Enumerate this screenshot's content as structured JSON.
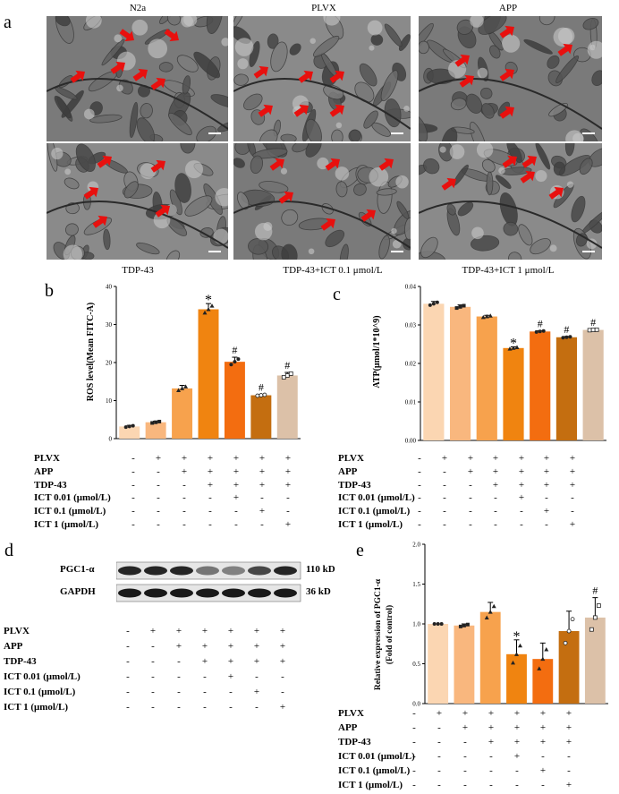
{
  "panel_letters": {
    "a": "a",
    "b": "b",
    "c": "c",
    "d": "d",
    "e": "e"
  },
  "panel_a": {
    "top_labels": [
      "N2a",
      "PLVX",
      "APP"
    ],
    "bottom_labels": [
      "TDP-43",
      "TDP-43+ICT 0.1 μmol/L",
      "TDP-43+ICT 1 μmol/L"
    ]
  },
  "colors": [
    "#fbd6b2",
    "#f9b77e",
    "#f7a24d",
    "#f08410",
    "#f36d10",
    "#c46e10",
    "#dcc1a8"
  ],
  "treatment_rows": [
    {
      "label": "PLVX",
      "signs": [
        "-",
        "+",
        "+",
        "+",
        "+",
        "+",
        "+"
      ]
    },
    {
      "label": "APP",
      "signs": [
        "-",
        "-",
        "+",
        "+",
        "+",
        "+",
        "+"
      ]
    },
    {
      "label": "TDP-43",
      "signs": [
        "-",
        "-",
        "-",
        "+",
        "+",
        "+",
        "+"
      ]
    },
    {
      "label": "ICT 0.01 (μmol/L)",
      "signs": [
        "-",
        "-",
        "-",
        "-",
        "+",
        "-",
        "-"
      ]
    },
    {
      "label": "ICT 0.1 (μmol/L)",
      "signs": [
        "-",
        "-",
        "-",
        "-",
        "-",
        "+",
        "-"
      ]
    },
    {
      "label": "ICT 1 (μmol/L)",
      "signs": [
        "-",
        "-",
        "-",
        "-",
        "-",
        "-",
        "+"
      ]
    }
  ],
  "western_blot": {
    "bands": [
      {
        "label": "PGC1-α",
        "size": "110 kD",
        "intensity": [
          0.95,
          0.95,
          0.95,
          0.6,
          0.55,
          0.8,
          0.95
        ]
      },
      {
        "label": "GAPDH",
        "size": "36 kD",
        "intensity": [
          1,
          1,
          1,
          1,
          1,
          1,
          1
        ]
      }
    ]
  },
  "chart_data": [
    {
      "id": "b",
      "type": "bar",
      "ylabel": "ROS level(Mean FITC-A)",
      "ylim": [
        0,
        40
      ],
      "yticks": [
        "0",
        "10",
        "20",
        "30",
        "40"
      ],
      "values": [
        3.2,
        4.3,
        13.2,
        34,
        20.2,
        11.4,
        16.6
      ],
      "errors": [
        0.3,
        0.3,
        0.8,
        1.5,
        1.2,
        0.2,
        0.8
      ],
      "annotations": [
        "",
        "",
        "",
        "*",
        "#",
        "#",
        "#"
      ]
    },
    {
      "id": "c",
      "type": "bar",
      "ylabel": "ATP(μmol/1*10^9)",
      "ylim": [
        0,
        0.04
      ],
      "yticks": [
        "0.00",
        "0.01",
        "0.02",
        "0.03",
        "0.04"
      ],
      "values": [
        0.0355,
        0.0347,
        0.0322,
        0.024,
        0.0283,
        0.0268,
        0.0287
      ],
      "errors": [
        0.0006,
        0.0005,
        0.0003,
        0.0003,
        0.0002,
        0.0002,
        0.0001
      ],
      "annotations": [
        "",
        "",
        "",
        "*",
        "#",
        "#",
        "#"
      ]
    },
    {
      "id": "e",
      "type": "bar",
      "ylabel": "Relative expression of PGC1-α",
      "ylabel2": "(Fold of control)",
      "ylim": [
        0,
        2.0
      ],
      "yticks": [
        "0.0",
        "0.5",
        "1.0",
        "1.5",
        "2.0"
      ],
      "values": [
        1.0,
        0.98,
        1.15,
        0.62,
        0.56,
        0.91,
        1.08
      ],
      "errors": [
        0.0,
        0.02,
        0.12,
        0.18,
        0.2,
        0.25,
        0.25
      ],
      "annotations": [
        "",
        "",
        "",
        "*",
        "",
        "",
        "#"
      ]
    }
  ]
}
